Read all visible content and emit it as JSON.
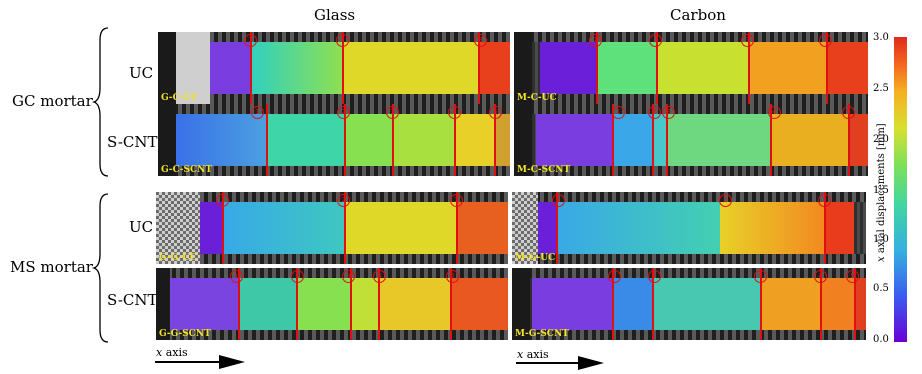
{
  "columns": {
    "glass": "Glass",
    "carbon": "Carbon"
  },
  "groups": {
    "gc": "GC mortar",
    "ms": "MS mortar"
  },
  "rows": {
    "uc": "UC",
    "scnt": "S-CNT"
  },
  "axis": {
    "x_italic": "x",
    "x_rest": " axis"
  },
  "colorbar": {
    "title_italic": "x",
    "title_rest": " axial displacements [mm]",
    "ticks": [
      "3.0",
      "2.5",
      "2.0",
      "1.5",
      "1.0",
      "0.5",
      "0.0"
    ]
  },
  "panels": {
    "gcuc": {
      "label": "G-C-UC",
      "cracks": [
        "1",
        "2",
        "3"
      ]
    },
    "mcuc": {
      "label": "M-C-UC",
      "cracks": [
        "1",
        "2",
        "3",
        "4"
      ]
    },
    "gcscnt": {
      "label": "G-C-SCNT",
      "cracks": [
        "1",
        "2",
        "3",
        "4",
        "5"
      ]
    },
    "mcscnt": {
      "label": "M-C-SCNT",
      "cracks": [
        "1",
        "2",
        "3",
        "4",
        "5"
      ]
    },
    "gguc": {
      "label": "G-G-UC",
      "cracks": [
        "1",
        "2",
        "3"
      ]
    },
    "mguc": {
      "label": "M-G-UC",
      "cracks": [
        "1",
        "2",
        "3"
      ]
    },
    "ggscnt": {
      "label": "G-G-SCNT",
      "cracks": [
        "1",
        "2",
        "3",
        "4",
        "5"
      ]
    },
    "mgscnt": {
      "label": "M-G-SCNT",
      "cracks": [
        "1",
        "2",
        "3",
        "4",
        "5"
      ]
    }
  }
}
